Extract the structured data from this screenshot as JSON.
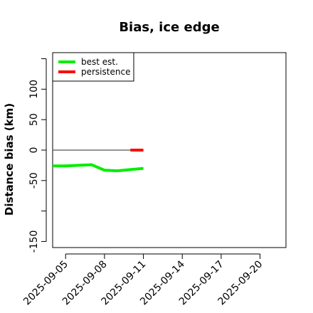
{
  "chart_data": {
    "type": "line",
    "title": "Bias, ice edge",
    "xlabel": "",
    "ylabel": "Distance bias (km)",
    "xlim": [
      "2025-09-04",
      "2025-09-22"
    ],
    "ylim": [
      -160,
      160
    ],
    "xticks": [
      "2025-09-05",
      "2025-09-08",
      "2025-09-11",
      "2025-09-14",
      "2025-09-17",
      "2025-09-20"
    ],
    "yticks": [
      -150,
      -100,
      -50,
      0,
      50,
      100,
      150
    ],
    "ytick_labels": [
      "-150",
      "",
      "-50",
      "0",
      "50",
      "100",
      ""
    ],
    "grid": false,
    "legend_position": "top-left",
    "reference_line": {
      "y": 0,
      "x": [
        "2025-09-04",
        "2025-09-11"
      ],
      "color": "#555555"
    },
    "series": [
      {
        "name": "best est.",
        "color": "#00ee00",
        "x": [
          "2025-09-04",
          "2025-09-05",
          "2025-09-06",
          "2025-09-07",
          "2025-09-08",
          "2025-09-09",
          "2025-09-10",
          "2025-09-11"
        ],
        "values": [
          -26,
          -26,
          -25,
          -24,
          -33,
          -34,
          -32,
          -30
        ]
      },
      {
        "name": "persistence",
        "color": "#ff0000",
        "x": [
          "2025-09-10",
          "2025-09-11"
        ],
        "values": [
          0,
          0
        ]
      }
    ]
  }
}
